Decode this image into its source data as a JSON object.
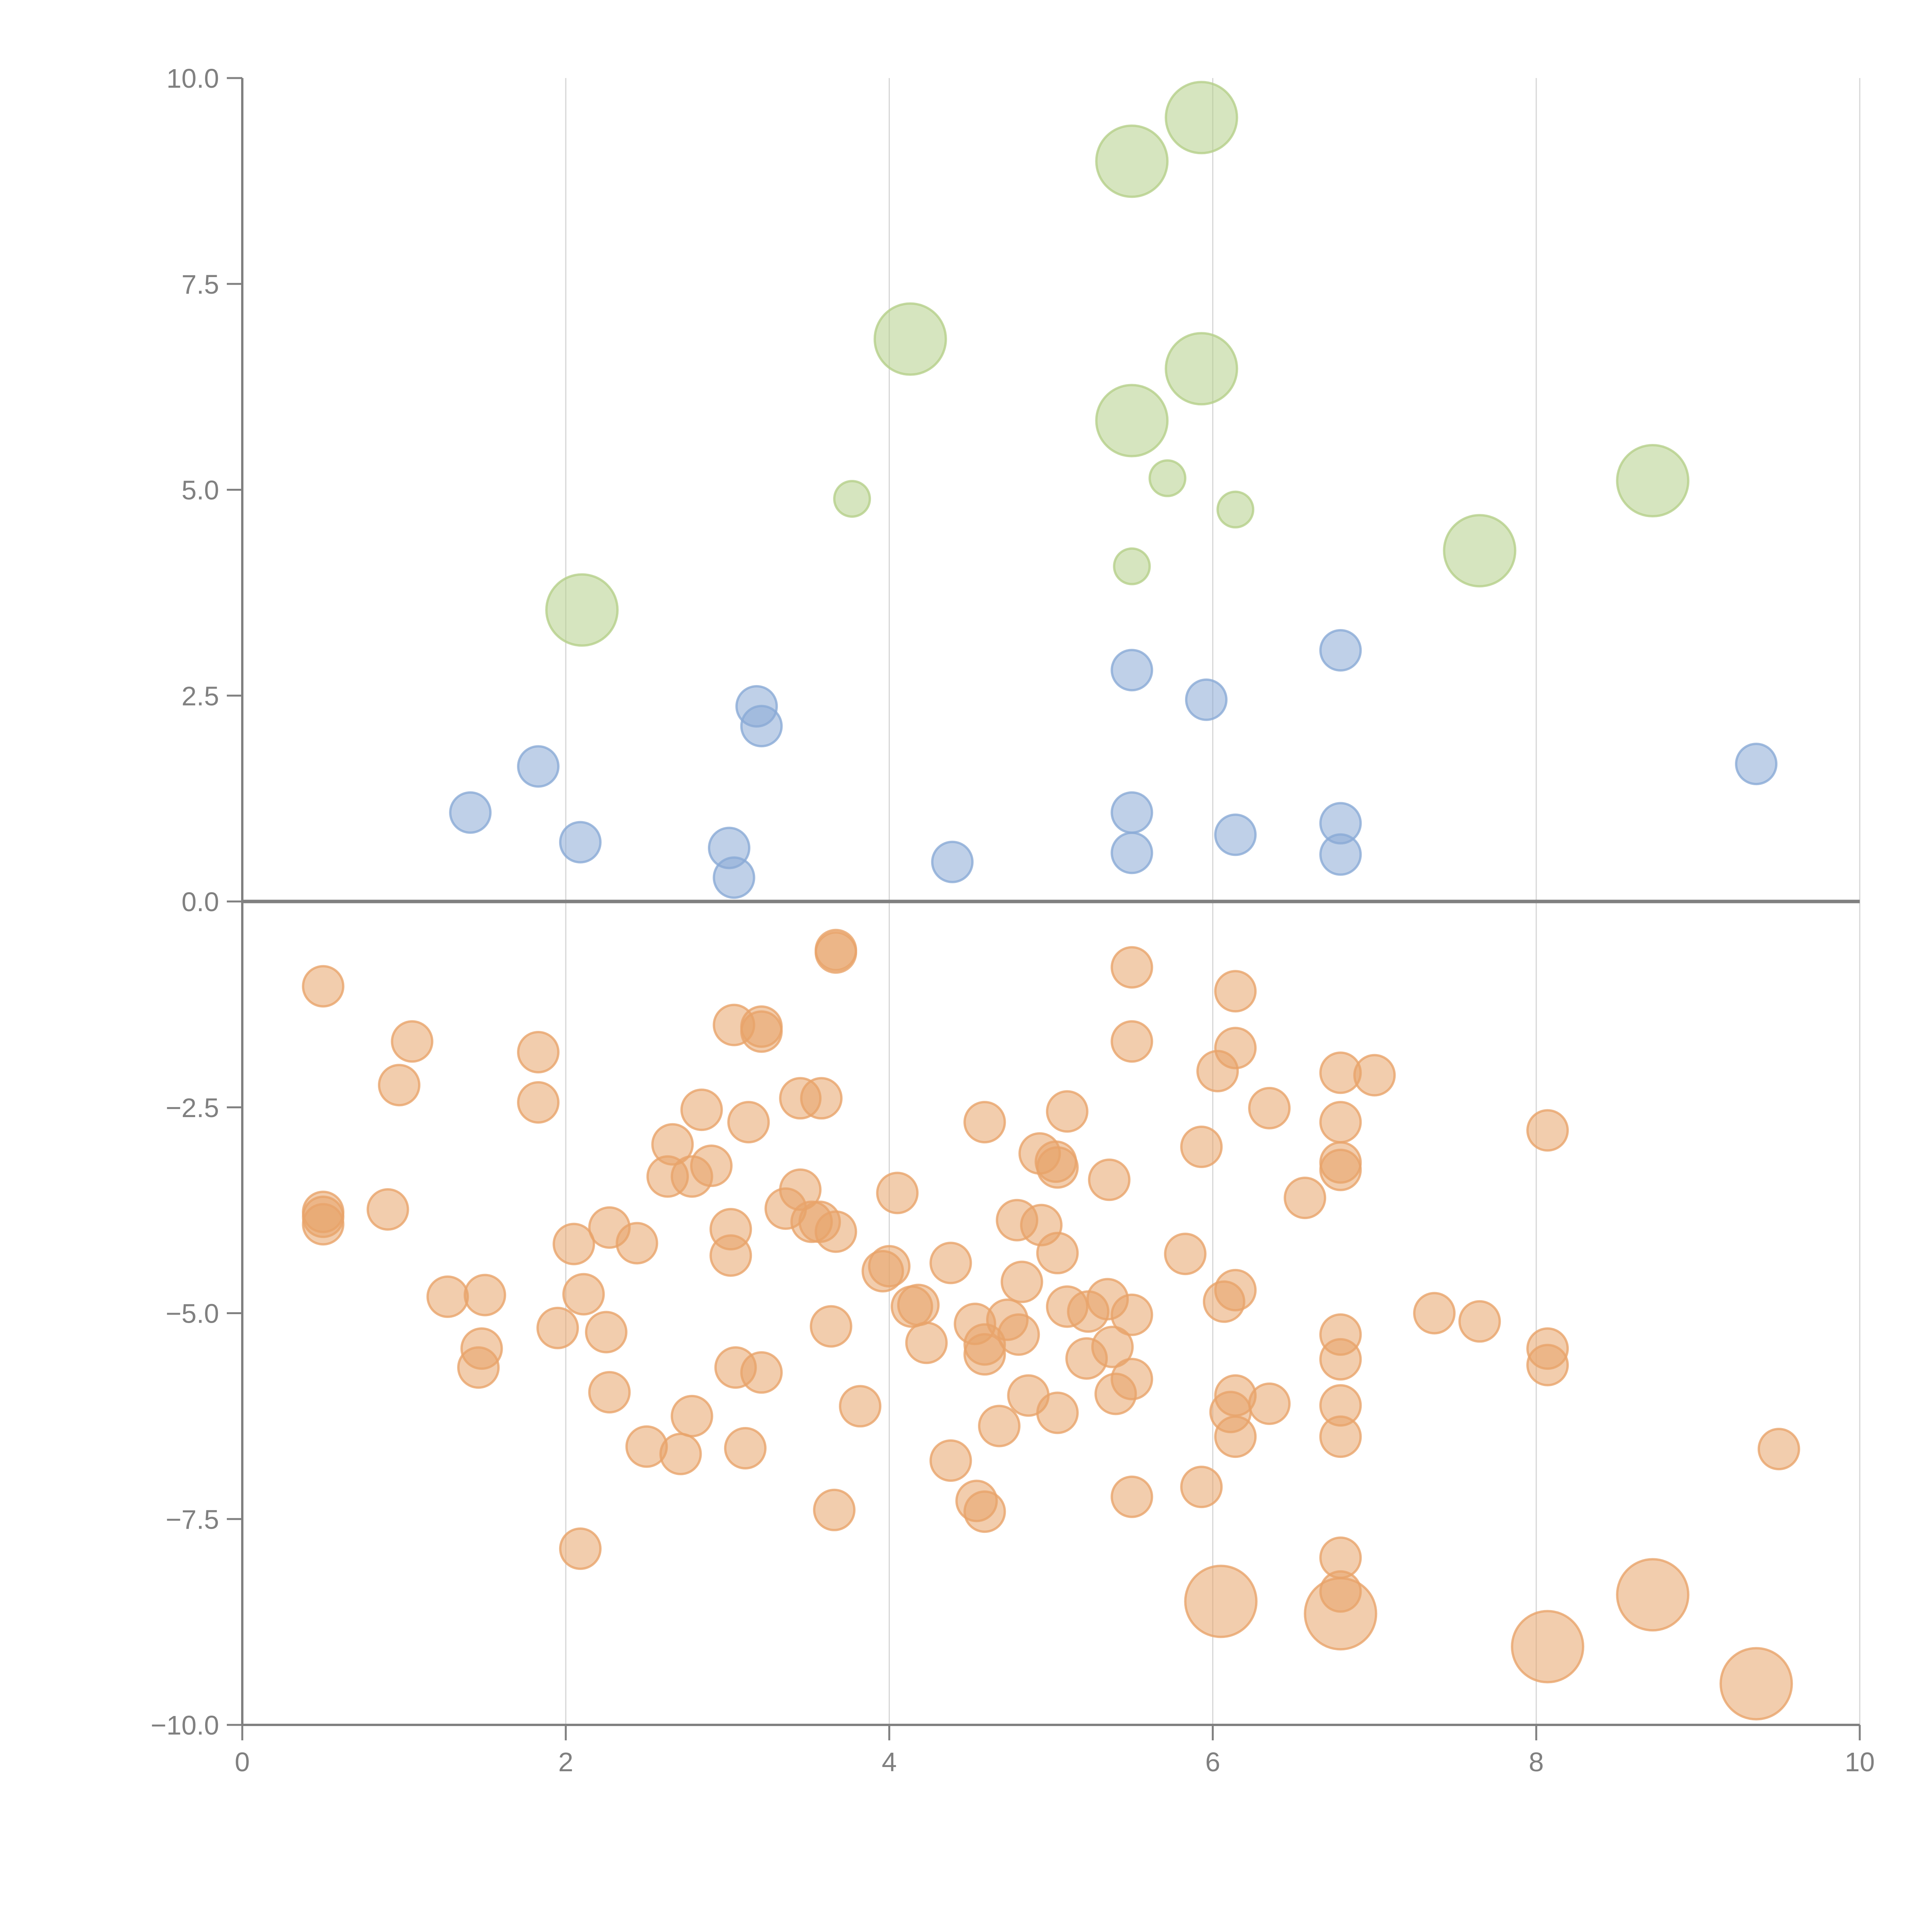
{
  "chart_data": {
    "type": "scatter",
    "title": "",
    "xlabel": "",
    "ylabel": "",
    "xlim": [
      0,
      10
    ],
    "ylim": [
      -10,
      10
    ],
    "grid": "vertical",
    "x_ticks": [
      "0",
      "2",
      "4",
      "6",
      "8",
      "10"
    ],
    "y_ticks": [
      "10.0",
      "7.5",
      "5.0",
      "2.5",
      "0.0",
      "−2.5",
      "−5.0",
      "−7.5",
      "−10.0"
    ],
    "x_tick_values": [
      0,
      2,
      4,
      6,
      8,
      10
    ],
    "y_tick_values": [
      10,
      7.5,
      5,
      2.5,
      0,
      -2.5,
      -5,
      -7.5,
      -10
    ],
    "reference_line_y": 0,
    "series": [
      {
        "name": "green",
        "color": "#b5d08a",
        "points": [
          {
            "x": 2.1,
            "y": 3.54,
            "size": "large"
          },
          {
            "x": 3.77,
            "y": 4.89,
            "size": "small"
          },
          {
            "x": 4.13,
            "y": 6.83,
            "size": "large"
          },
          {
            "x": 5.5,
            "y": 8.99,
            "size": "large"
          },
          {
            "x": 5.93,
            "y": 9.52,
            "size": "large"
          },
          {
            "x": 5.5,
            "y": 5.84,
            "size": "large"
          },
          {
            "x": 5.72,
            "y": 5.14,
            "size": "small"
          },
          {
            "x": 5.93,
            "y": 6.47,
            "size": "large"
          },
          {
            "x": 6.14,
            "y": 4.76,
            "size": "small"
          },
          {
            "x": 5.5,
            "y": 4.07,
            "size": "small"
          },
          {
            "x": 7.65,
            "y": 4.26,
            "size": "large"
          },
          {
            "x": 8.72,
            "y": 5.11,
            "size": "large"
          }
        ]
      },
      {
        "name": "blue",
        "color": "#8aaad6",
        "points": [
          {
            "x": 1.41,
            "y": 1.08,
            "size": "medium"
          },
          {
            "x": 1.83,
            "y": 1.64,
            "size": "medium"
          },
          {
            "x": 2.09,
            "y": 0.72,
            "size": "medium"
          },
          {
            "x": 3.01,
            "y": 0.65,
            "size": "medium"
          },
          {
            "x": 3.04,
            "y": 0.29,
            "size": "medium"
          },
          {
            "x": 3.18,
            "y": 2.37,
            "size": "medium"
          },
          {
            "x": 3.21,
            "y": 2.13,
            "size": "medium"
          },
          {
            "x": 4.39,
            "y": 0.48,
            "size": "medium"
          },
          {
            "x": 5.5,
            "y": 2.81,
            "size": "medium"
          },
          {
            "x": 5.5,
            "y": 1.08,
            "size": "medium"
          },
          {
            "x": 5.5,
            "y": 0.59,
            "size": "medium"
          },
          {
            "x": 5.96,
            "y": 2.45,
            "size": "medium"
          },
          {
            "x": 6.14,
            "y": 0.81,
            "size": "medium"
          },
          {
            "x": 6.79,
            "y": 3.05,
            "size": "medium"
          },
          {
            "x": 6.79,
            "y": 0.95,
            "size": "medium"
          },
          {
            "x": 6.79,
            "y": 0.57,
            "size": "medium"
          },
          {
            "x": 9.36,
            "y": 1.67,
            "size": "medium"
          }
        ]
      },
      {
        "name": "orange",
        "color": "#e8a46a",
        "points": [
          {
            "x": 0.5,
            "y": -1.03,
            "size": "medium"
          },
          {
            "x": 1.05,
            "y": -1.7,
            "size": "medium"
          },
          {
            "x": 0.97,
            "y": -2.23,
            "size": "medium"
          },
          {
            "x": 1.83,
            "y": -1.83,
            "size": "medium"
          },
          {
            "x": 1.83,
            "y": -2.44,
            "size": "medium"
          },
          {
            "x": 0.5,
            "y": -3.77,
            "size": "medium"
          },
          {
            "x": 0.5,
            "y": -3.83,
            "size": "medium"
          },
          {
            "x": 0.5,
            "y": -3.92,
            "size": "medium"
          },
          {
            "x": 0.9,
            "y": -3.74,
            "size": "medium"
          },
          {
            "x": 1.27,
            "y": -4.8,
            "size": "medium"
          },
          {
            "x": 1.5,
            "y": -4.78,
            "size": "medium"
          },
          {
            "x": 1.48,
            "y": -5.43,
            "size": "medium"
          },
          {
            "x": 1.46,
            "y": -5.66,
            "size": "medium"
          },
          {
            "x": 1.95,
            "y": -5.18,
            "size": "medium"
          },
          {
            "x": 2.05,
            "y": -4.16,
            "size": "medium"
          },
          {
            "x": 2.11,
            "y": -4.77,
            "size": "medium"
          },
          {
            "x": 2.27,
            "y": -3.96,
            "size": "medium"
          },
          {
            "x": 2.44,
            "y": -4.15,
            "size": "medium"
          },
          {
            "x": 2.25,
            "y": -5.23,
            "size": "medium"
          },
          {
            "x": 2.27,
            "y": -5.96,
            "size": "medium"
          },
          {
            "x": 2.09,
            "y": -7.86,
            "size": "medium"
          },
          {
            "x": 2.5,
            "y": -6.62,
            "size": "medium"
          },
          {
            "x": 2.71,
            "y": -6.71,
            "size": "medium"
          },
          {
            "x": 2.78,
            "y": -6.25,
            "size": "medium"
          },
          {
            "x": 2.66,
            "y": -2.95,
            "size": "medium"
          },
          {
            "x": 2.84,
            "y": -2.53,
            "size": "medium"
          },
          {
            "x": 2.63,
            "y": -3.34,
            "size": "medium"
          },
          {
            "x": 2.78,
            "y": -3.34,
            "size": "medium"
          },
          {
            "x": 2.9,
            "y": -3.21,
            "size": "medium"
          },
          {
            "x": 3.04,
            "y": -1.5,
            "size": "medium"
          },
          {
            "x": 3.21,
            "y": -1.52,
            "size": "medium"
          },
          {
            "x": 3.21,
            "y": -1.58,
            "size": "medium"
          },
          {
            "x": 3.13,
            "y": -2.68,
            "size": "medium"
          },
          {
            "x": 3.02,
            "y": -3.98,
            "size": "medium"
          },
          {
            "x": 3.02,
            "y": -4.3,
            "size": "medium"
          },
          {
            "x": 3.05,
            "y": -5.66,
            "size": "medium"
          },
          {
            "x": 3.21,
            "y": -5.72,
            "size": "medium"
          },
          {
            "x": 3.11,
            "y": -6.64,
            "size": "medium"
          },
          {
            "x": 3.36,
            "y": -3.73,
            "size": "medium"
          },
          {
            "x": 3.45,
            "y": -3.5,
            "size": "medium"
          },
          {
            "x": 3.45,
            "y": -2.39,
            "size": "medium"
          },
          {
            "x": 3.58,
            "y": -2.39,
            "size": "medium"
          },
          {
            "x": 3.52,
            "y": -3.89,
            "size": "medium"
          },
          {
            "x": 3.57,
            "y": -3.89,
            "size": "medium"
          },
          {
            "x": 3.67,
            "y": -4.01,
            "size": "medium"
          },
          {
            "x": 3.64,
            "y": -5.16,
            "size": "medium"
          },
          {
            "x": 3.67,
            "y": -0.59,
            "size": "medium"
          },
          {
            "x": 3.67,
            "y": -0.62,
            "size": "medium"
          },
          {
            "x": 3.66,
            "y": -7.39,
            "size": "medium"
          },
          {
            "x": 3.82,
            "y": -6.13,
            "size": "medium"
          },
          {
            "x": 3.96,
            "y": -4.49,
            "size": "medium"
          },
          {
            "x": 4.0,
            "y": -4.43,
            "size": "medium"
          },
          {
            "x": 4.05,
            "y": -3.54,
            "size": "medium"
          },
          {
            "x": 4.14,
            "y": -4.92,
            "size": "medium"
          },
          {
            "x": 4.18,
            "y": -4.9,
            "size": "medium"
          },
          {
            "x": 4.23,
            "y": -5.36,
            "size": "medium"
          },
          {
            "x": 4.38,
            "y": -4.39,
            "size": "medium"
          },
          {
            "x": 4.38,
            "y": -6.79,
            "size": "medium"
          },
          {
            "x": 4.53,
            "y": -5.13,
            "size": "medium"
          },
          {
            "x": 4.59,
            "y": -5.38,
            "size": "medium"
          },
          {
            "x": 4.59,
            "y": -5.5,
            "size": "medium"
          },
          {
            "x": 4.59,
            "y": -2.68,
            "size": "medium"
          },
          {
            "x": 4.54,
            "y": -7.28,
            "size": "medium"
          },
          {
            "x": 4.59,
            "y": -7.41,
            "size": "medium"
          },
          {
            "x": 4.68,
            "y": -6.37,
            "size": "medium"
          },
          {
            "x": 4.73,
            "y": -5.08,
            "size": "medium"
          },
          {
            "x": 4.79,
            "y": -3.87,
            "size": "medium"
          },
          {
            "x": 4.8,
            "y": -5.26,
            "size": "medium"
          },
          {
            "x": 4.82,
            "y": -4.62,
            "size": "medium"
          },
          {
            "x": 4.86,
            "y": -6.0,
            "size": "medium"
          },
          {
            "x": 4.93,
            "y": -3.06,
            "size": "medium"
          },
          {
            "x": 4.94,
            "y": -3.93,
            "size": "medium"
          },
          {
            "x": 5.03,
            "y": -3.16,
            "size": "medium"
          },
          {
            "x": 5.04,
            "y": -3.23,
            "size": "medium"
          },
          {
            "x": 5.04,
            "y": -4.27,
            "size": "medium"
          },
          {
            "x": 5.04,
            "y": -6.21,
            "size": "medium"
          },
          {
            "x": 5.1,
            "y": -2.55,
            "size": "medium"
          },
          {
            "x": 5.1,
            "y": -4.92,
            "size": "medium"
          },
          {
            "x": 5.23,
            "y": -4.98,
            "size": "medium"
          },
          {
            "x": 5.22,
            "y": -5.55,
            "size": "medium"
          },
          {
            "x": 5.36,
            "y": -3.38,
            "size": "medium"
          },
          {
            "x": 5.35,
            "y": -4.83,
            "size": "medium"
          },
          {
            "x": 5.38,
            "y": -5.41,
            "size": "medium"
          },
          {
            "x": 5.4,
            "y": -5.98,
            "size": "medium"
          },
          {
            "x": 5.5,
            "y": -5.02,
            "size": "medium"
          },
          {
            "x": 5.5,
            "y": -5.8,
            "size": "medium"
          },
          {
            "x": 5.5,
            "y": -0.8,
            "size": "medium"
          },
          {
            "x": 5.5,
            "y": -1.7,
            "size": "medium"
          },
          {
            "x": 5.5,
            "y": -7.23,
            "size": "medium"
          },
          {
            "x": 5.83,
            "y": -4.28,
            "size": "medium"
          },
          {
            "x": 5.93,
            "y": -2.98,
            "size": "medium"
          },
          {
            "x": 5.93,
            "y": -7.11,
            "size": "medium"
          },
          {
            "x": 6.03,
            "y": -2.06,
            "size": "medium"
          },
          {
            "x": 6.07,
            "y": -4.86,
            "size": "medium"
          },
          {
            "x": 6.14,
            "y": -1.09,
            "size": "medium"
          },
          {
            "x": 6.14,
            "y": -1.78,
            "size": "medium"
          },
          {
            "x": 6.14,
            "y": -4.72,
            "size": "medium"
          },
          {
            "x": 6.14,
            "y": -6.0,
            "size": "medium"
          },
          {
            "x": 6.11,
            "y": -6.2,
            "size": "medium"
          },
          {
            "x": 6.14,
            "y": -6.5,
            "size": "medium"
          },
          {
            "x": 6.35,
            "y": -2.51,
            "size": "medium"
          },
          {
            "x": 6.35,
            "y": -6.1,
            "size": "medium"
          },
          {
            "x": 6.57,
            "y": -3.6,
            "size": "medium"
          },
          {
            "x": 6.79,
            "y": -2.08,
            "size": "medium"
          },
          {
            "x": 6.79,
            "y": -2.68,
            "size": "medium"
          },
          {
            "x": 6.79,
            "y": -3.17,
            "size": "medium"
          },
          {
            "x": 6.79,
            "y": -3.26,
            "size": "medium"
          },
          {
            "x": 6.79,
            "y": -5.26,
            "size": "medium"
          },
          {
            "x": 6.79,
            "y": -5.56,
            "size": "medium"
          },
          {
            "x": 6.79,
            "y": -6.12,
            "size": "medium"
          },
          {
            "x": 6.79,
            "y": -6.5,
            "size": "medium"
          },
          {
            "x": 6.79,
            "y": -7.97,
            "size": "medium"
          },
          {
            "x": 6.79,
            "y": -8.38,
            "size": "medium"
          },
          {
            "x": 7.0,
            "y": -2.11,
            "size": "medium"
          },
          {
            "x": 7.37,
            "y": -5.0,
            "size": "medium"
          },
          {
            "x": 7.65,
            "y": -5.1,
            "size": "medium"
          },
          {
            "x": 8.07,
            "y": -2.78,
            "size": "medium"
          },
          {
            "x": 8.07,
            "y": -5.43,
            "size": "medium"
          },
          {
            "x": 8.07,
            "y": -5.63,
            "size": "medium"
          },
          {
            "x": 9.5,
            "y": -6.65,
            "size": "medium"
          },
          {
            "x": 6.05,
            "y": -8.5,
            "size": "large"
          },
          {
            "x": 6.79,
            "y": -8.65,
            "size": "large"
          },
          {
            "x": 8.07,
            "y": -9.05,
            "size": "large"
          },
          {
            "x": 8.72,
            "y": -8.42,
            "size": "large"
          },
          {
            "x": 9.36,
            "y": -9.5,
            "size": "large"
          }
        ]
      }
    ]
  }
}
